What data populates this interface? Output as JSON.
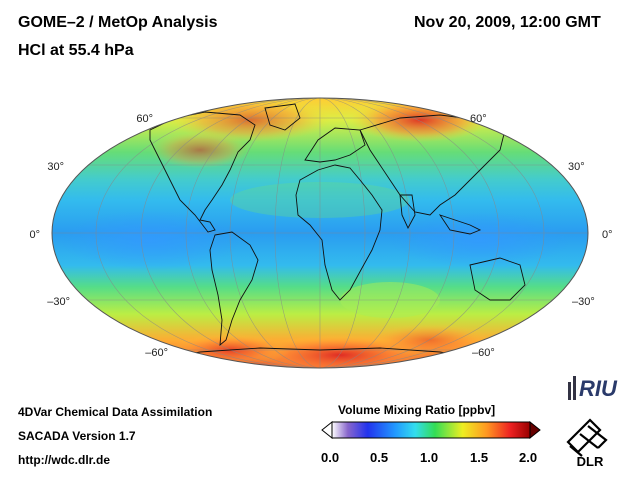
{
  "header": {
    "title_left": "GOME–2 / MetOp Analysis",
    "subtitle_left": "HCl at 55.4 hPa",
    "title_right": "Nov 20, 2009, 12:00 GMT"
  },
  "map": {
    "projection": "Mollweide",
    "latitude_labels_left": [
      "60°",
      "30°",
      "0°",
      "–30°",
      "–60°"
    ],
    "latitude_labels_right": [
      "60°",
      "30°",
      "0°",
      "–30°",
      "–60°"
    ]
  },
  "footer": {
    "line1": "4DVar Chemical Data Assimilation",
    "line2": "SACADA Version 1.7",
    "line3": "http://wdc.dlr.de"
  },
  "colorbar": {
    "title": "Volume Mixing Ratio [ppbv]",
    "ticks": [
      "0.0",
      "0.5",
      "1.0",
      "1.5",
      "2.0"
    ],
    "min": 0.0,
    "max": 2.0
  },
  "logos": {
    "riu": "RIU",
    "dlr": "DLR"
  },
  "colors": {
    "cyan": "#33ccff",
    "blue": "#3399ff",
    "green": "#33dd66",
    "yellow": "#eeee33",
    "orange": "#ff8833",
    "red": "#dd2222"
  }
}
